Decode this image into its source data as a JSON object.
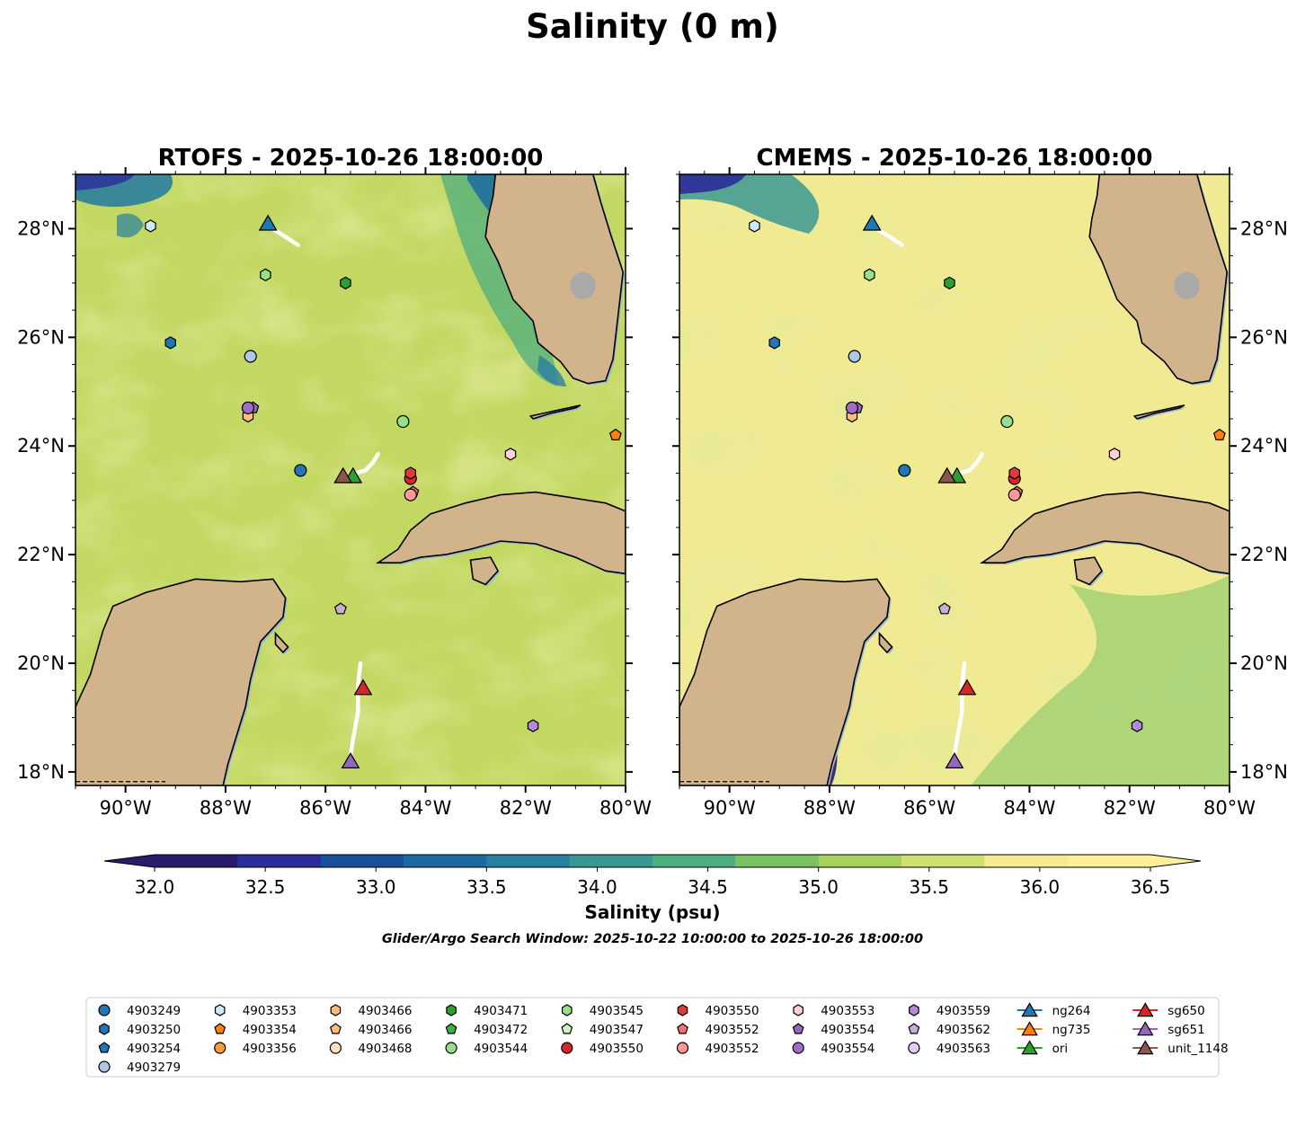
{
  "figure": {
    "title": "Salinity (0 m)",
    "window_text": "Glider/Argo Search Window: 2025-10-22 10:00:00 to 2025-10-26 18:00:00"
  },
  "colors": {
    "land": "#d2b48c",
    "coast_fill": "#9ab6d8",
    "track": "#ffffff",
    "lake": "#a9a9a9",
    "colormap": [
      "#2a1c6b",
      "#2c2d9a",
      "#1a4f9c",
      "#1d6aa1",
      "#2a809e",
      "#3a9894",
      "#4fae7f",
      "#7bc265",
      "#a6d15a",
      "#cfe070",
      "#f5ea8f",
      "#ffee9a"
    ]
  },
  "panels": [
    {
      "title": "RTOFS - 2025-10-26 18:00:00",
      "field_base": "#c2d862",
      "field_light": "#ece986"
    },
    {
      "title": "CMEMS - 2025-10-26 18:00:00",
      "field_base": "#f0ea93",
      "field_light": "#fbed9c"
    }
  ],
  "map_axes": {
    "lon_range": [
      -91,
      -80
    ],
    "lat_range": [
      17.75,
      29
    ],
    "lon_ticks": [
      "90°W",
      "88°W",
      "86°W",
      "84°W",
      "82°W",
      "80°W"
    ],
    "lat_ticks": [
      "28°N",
      "26°N",
      "24°N",
      "22°N",
      "20°N",
      "18°N"
    ]
  },
  "colorbar": {
    "label": "Salinity (psu)",
    "min": 32.0,
    "max": 36.5,
    "ticks": [
      "32.0",
      "32.5",
      "33.0",
      "33.5",
      "34.0",
      "34.5",
      "35.0",
      "35.5",
      "36.0",
      "36.5"
    ]
  },
  "markers": [
    {
      "label": "4903249",
      "shape": "circle",
      "color": "#1f77b4",
      "lon": -86.5,
      "lat": 23.55
    },
    {
      "label": "4903250",
      "shape": "hexagon",
      "color": "#1f77b4",
      "lon": -89.1,
      "lat": 25.9
    },
    {
      "label": "4903254",
      "shape": "pentagon",
      "color": "#1f77b4",
      "lon": null,
      "lat": null
    },
    {
      "label": "4903279",
      "shape": "circle",
      "color": "#aec7e8",
      "lon": -87.5,
      "lat": 25.65
    },
    {
      "label": "4903353",
      "shape": "hexagon",
      "color": "#cde9fb",
      "lon": -89.5,
      "lat": 28.05
    },
    {
      "label": "4903354",
      "shape": "pentagon",
      "color": "#ff7f0e",
      "lon": -80.2,
      "lat": 24.2
    },
    {
      "label": "4903356",
      "shape": "circle",
      "color": "#ff9a3c",
      "lon": null,
      "lat": null
    },
    {
      "label": "4903466",
      "shape": "hexagon",
      "color": "#ffbb78",
      "lon": -87.55,
      "lat": 24.55
    },
    {
      "label": "4903466",
      "shape": "pentagon",
      "color": "#ffbb78",
      "lon": null,
      "lat": null
    },
    {
      "label": "4903468",
      "shape": "circle",
      "color": "#ffdfbf",
      "lon": null,
      "lat": null
    },
    {
      "label": "4903471",
      "shape": "hexagon",
      "color": "#2ca02c",
      "lon": -85.6,
      "lat": 27.0
    },
    {
      "label": "4903472",
      "shape": "pentagon",
      "color": "#3cb043",
      "lon": null,
      "lat": null
    },
    {
      "label": "4903544",
      "shape": "circle",
      "color": "#98df8a",
      "lon": -84.45,
      "lat": 24.45
    },
    {
      "label": "4903545",
      "shape": "hexagon",
      "color": "#98df8a",
      "lon": -87.2,
      "lat": 27.15
    },
    {
      "label": "4903547",
      "shape": "pentagon",
      "color": "#ccf5c0",
      "lon": null,
      "lat": null
    },
    {
      "label": "4903550",
      "shape": "circle",
      "color": "#d62728",
      "lon": -84.3,
      "lat": 23.4
    },
    {
      "label": "4903550",
      "shape": "hexagon",
      "color": "#e03a3a",
      "lon": -84.3,
      "lat": 23.5
    },
    {
      "label": "4903552",
      "shape": "pentagon",
      "color": "#f07070",
      "lon": -84.25,
      "lat": 23.15
    },
    {
      "label": "4903552",
      "shape": "circle",
      "color": "#ff9896",
      "lon": -84.3,
      "lat": 23.1
    },
    {
      "label": "4903553",
      "shape": "hexagon",
      "color": "#ffd0d8",
      "lon": -82.3,
      "lat": 23.85
    },
    {
      "label": "4903554",
      "shape": "pentagon",
      "color": "#9467bd",
      "lon": -87.45,
      "lat": 24.7
    },
    {
      "label": "4903554",
      "shape": "circle",
      "color": "#9e6ec6",
      "lon": -87.55,
      "lat": 24.7
    },
    {
      "label": "4903559",
      "shape": "hexagon",
      "color": "#b38ad9",
      "lon": -81.85,
      "lat": 18.85
    },
    {
      "label": "4903562",
      "shape": "pentagon",
      "color": "#c5b0d5",
      "lon": -85.7,
      "lat": 21.0
    },
    {
      "label": "4903563",
      "shape": "circle",
      "color": "#e3cdf5",
      "lon": null,
      "lat": null
    },
    {
      "label": "ng264",
      "shape": "triangle",
      "color": "#1f77b4",
      "lon": -87.15,
      "lat": 28.1
    },
    {
      "label": "ng735",
      "shape": "triangle",
      "color": "#ff7f0e",
      "lon": null,
      "lat": null
    },
    {
      "label": "ori",
      "shape": "triangle",
      "color": "#2ca02c",
      "lon": -85.45,
      "lat": 23.45
    },
    {
      "label": "sg650",
      "shape": "triangle",
      "color": "#d62728",
      "lon": -85.25,
      "lat": 19.55
    },
    {
      "label": "sg651",
      "shape": "triangle",
      "color": "#9467bd",
      "lon": -85.5,
      "lat": 18.2
    },
    {
      "label": "unit_1148",
      "shape": "triangle",
      "color": "#8c564b",
      "lon": -85.65,
      "lat": 23.45
    }
  ],
  "tracks": [
    [
      [
        -87.15,
        28.05
      ],
      [
        -86.8,
        27.85
      ],
      [
        -86.55,
        27.7
      ]
    ],
    [
      [
        -85.4,
        23.5
      ],
      [
        -85.2,
        23.55
      ],
      [
        -85.05,
        23.7
      ],
      [
        -84.95,
        23.85
      ]
    ],
    [
      [
        -85.3,
        20.0
      ],
      [
        -85.35,
        19.6
      ],
      [
        -85.35,
        19.1
      ],
      [
        -85.45,
        18.6
      ],
      [
        -85.5,
        18.3
      ]
    ]
  ],
  "land": {
    "florida": [
      [
        -82.6,
        29
      ],
      [
        -82.65,
        28.6
      ],
      [
        -82.75,
        28.2
      ],
      [
        -82.8,
        27.85
      ],
      [
        -82.55,
        27.4
      ],
      [
        -82.25,
        26.7
      ],
      [
        -81.85,
        26.3
      ],
      [
        -81.75,
        25.9
      ],
      [
        -81.3,
        25.55
      ],
      [
        -81.05,
        25.25
      ],
      [
        -80.75,
        25.15
      ],
      [
        -80.4,
        25.2
      ],
      [
        -80.25,
        25.6
      ],
      [
        -80.15,
        26.4
      ],
      [
        -80.05,
        27.2
      ],
      [
        -80.3,
        27.9
      ],
      [
        -80.5,
        28.5
      ],
      [
        -80.65,
        29
      ]
    ],
    "cuba": [
      [
        -84.95,
        21.85
      ],
      [
        -84.55,
        22.1
      ],
      [
        -84.3,
        22.45
      ],
      [
        -83.9,
        22.75
      ],
      [
        -83.2,
        22.95
      ],
      [
        -82.5,
        23.1
      ],
      [
        -81.8,
        23.15
      ],
      [
        -81.1,
        23.05
      ],
      [
        -80.4,
        22.95
      ],
      [
        -80,
        22.8
      ],
      [
        -80,
        21.65
      ],
      [
        -80.4,
        21.7
      ],
      [
        -81.0,
        21.95
      ],
      [
        -81.8,
        22.2
      ],
      [
        -82.5,
        22.25
      ],
      [
        -83.1,
        22.1
      ],
      [
        -83.6,
        22.0
      ],
      [
        -84.1,
        21.95
      ],
      [
        -84.5,
        21.85
      ]
    ],
    "isla_juventud": [
      [
        -83.1,
        21.9
      ],
      [
        -82.7,
        21.95
      ],
      [
        -82.55,
        21.7
      ],
      [
        -82.8,
        21.45
      ],
      [
        -83.05,
        21.55
      ]
    ],
    "yucatan": [
      [
        -91,
        19.2
      ],
      [
        -90.7,
        19.8
      ],
      [
        -90.45,
        20.6
      ],
      [
        -90.25,
        21.05
      ],
      [
        -89.6,
        21.3
      ],
      [
        -88.6,
        21.55
      ],
      [
        -87.7,
        21.5
      ],
      [
        -87.05,
        21.55
      ],
      [
        -86.8,
        21.2
      ],
      [
        -86.85,
        20.85
      ],
      [
        -87.3,
        20.4
      ],
      [
        -87.5,
        19.7
      ],
      [
        -87.6,
        19.2
      ],
      [
        -87.8,
        18.6
      ],
      [
        -87.95,
        18.15
      ],
      [
        -88.05,
        17.75
      ],
      [
        -91,
        17.75
      ]
    ],
    "cozumel": [
      [
        -87.0,
        20.55
      ],
      [
        -86.9,
        20.45
      ],
      [
        -86.75,
        20.3
      ],
      [
        -86.85,
        20.2
      ],
      [
        -87.0,
        20.35
      ]
    ],
    "key_west": [
      [
        -81.9,
        24.55
      ],
      [
        -81.4,
        24.65
      ],
      [
        -80.9,
        24.75
      ],
      [
        -81.0,
        24.7
      ],
      [
        -81.5,
        24.6
      ],
      [
        -81.85,
        24.5
      ]
    ]
  }
}
